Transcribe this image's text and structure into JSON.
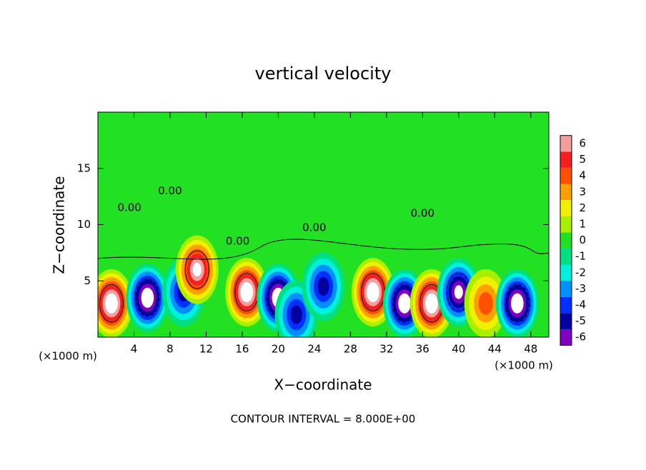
{
  "chart_data": {
    "type": "contour",
    "title": "vertical velocity",
    "x_label": "X−coordinate",
    "y_label": "Z−coordinate",
    "x_unit": "(×1000 m)",
    "footer": "CONTOUR INTERVAL = 8.000E+00",
    "contour_label": "0.00",
    "xlim": [
      0,
      50
    ],
    "xticks": [
      4,
      8,
      12,
      16,
      20,
      24,
      28,
      32,
      36,
      40,
      44,
      48
    ],
    "ylim": [
      0,
      20
    ],
    "yticks": [
      5,
      10,
      15
    ],
    "colorbar": {
      "levels": [
        -6,
        -5,
        -4,
        -3,
        -2,
        -1,
        0,
        1,
        2,
        3,
        4,
        5,
        6
      ],
      "colors": [
        "#8000c0",
        "#0000a0",
        "#0030ff",
        "#0090ff",
        "#00f0e0",
        "#00e080",
        "#22e022",
        "#a8f000",
        "#f0f000",
        "#ffa000",
        "#ff5000",
        "#f42020",
        "#f4a0a0"
      ]
    },
    "cells": [
      {
        "x": 1.5,
        "z": 3,
        "value": 8
      },
      {
        "x": 5.5,
        "z": 3.5,
        "value": -8
      },
      {
        "x": 9.5,
        "z": 4,
        "value": -5
      },
      {
        "x": 11,
        "z": 6,
        "value": 7
      },
      {
        "x": 16.5,
        "z": 4,
        "value": 8
      },
      {
        "x": 20,
        "z": 3.5,
        "value": -8
      },
      {
        "x": 22,
        "z": 2,
        "value": -5
      },
      {
        "x": 25,
        "z": 4.5,
        "value": -5
      },
      {
        "x": 30.5,
        "z": 4,
        "value": 8
      },
      {
        "x": 34,
        "z": 3,
        "value": -8
      },
      {
        "x": 37,
        "z": 3,
        "value": 8
      },
      {
        "x": 40,
        "z": 4,
        "value": -7
      },
      {
        "x": 43,
        "z": 3,
        "value": 4
      },
      {
        "x": 46.5,
        "z": 3,
        "value": -8
      }
    ]
  }
}
